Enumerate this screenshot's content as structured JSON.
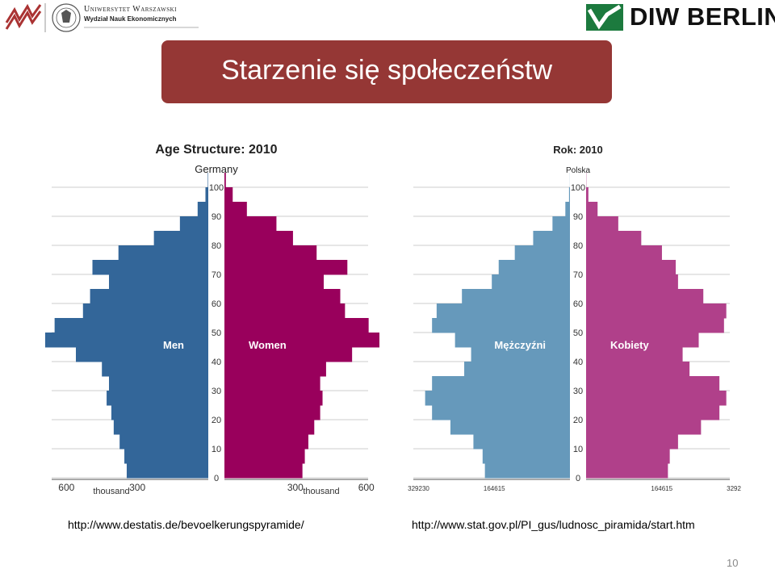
{
  "header": {
    "university_line1": "Uniwersytet Warszawski",
    "university_line2": "Wydział Nauk Ekonomicznych",
    "diw_logo_text": "DIW BERLIN"
  },
  "slide": {
    "title": "Starzenie się społeczeństw",
    "source_left": "http://www.destatis.de/bevoelkerungspyramide/",
    "source_right": "http://www.stat.gov.pl/PI_gus/ludnosc_piramida/start.htm",
    "page_number": "10"
  },
  "colors": {
    "title_bg": "#953735",
    "germany_men": "#336699",
    "germany_women": "#99005c",
    "poland_men": "#6699bb",
    "poland_women": "#b0408a"
  },
  "chart_data": [
    {
      "type": "population-pyramid",
      "title": "Age Structure: 2010",
      "subtitle": "Germany",
      "left_label": "Men",
      "right_label": "Women",
      "age_ticks": [
        "0",
        "10",
        "20",
        "30",
        "40",
        "50",
        "60",
        "70",
        "80",
        "90",
        "100"
      ],
      "x_ticks_left": [
        "600",
        "300"
      ],
      "x_ticks_right": [
        "300",
        "600"
      ],
      "x_unit": "thousand",
      "xlim": [
        0,
        700
      ],
      "age_step": 5,
      "ages": [
        0,
        5,
        10,
        15,
        20,
        25,
        30,
        35,
        40,
        45,
        50,
        55,
        60,
        65,
        70,
        75,
        80,
        85,
        90,
        95,
        100
      ],
      "series": [
        {
          "name": "Men",
          "values": [
            345,
            355,
            375,
            400,
            410,
            430,
            420,
            450,
            560,
            690,
            650,
            530,
            500,
            420,
            490,
            380,
            230,
            120,
            45,
            12,
            2
          ]
        },
        {
          "name": "Women",
          "values": [
            330,
            340,
            355,
            380,
            405,
            415,
            405,
            430,
            540,
            660,
            610,
            510,
            490,
            420,
            520,
            390,
            290,
            220,
            95,
            35,
            6
          ]
        }
      ]
    },
    {
      "type": "population-pyramid",
      "title": "Rok: 2010",
      "subtitle": "Polska",
      "left_label": "Mężczyźni",
      "right_label": "Kobiety",
      "age_ticks": [
        "0",
        "10",
        "20",
        "30",
        "40",
        "50",
        "60",
        "70",
        "80",
        "90",
        "100"
      ],
      "x_ticks_left": [
        "329230",
        "164615"
      ],
      "x_ticks_right": [
        "164615",
        "329230"
      ],
      "xlim": [
        0,
        360000
      ],
      "age_step": 5,
      "ages": [
        0,
        5,
        10,
        15,
        20,
        25,
        30,
        35,
        40,
        45,
        50,
        55,
        60,
        65,
        70,
        75,
        80,
        85,
        90,
        95,
        100
      ],
      "series": [
        {
          "name": "Mężczyźni",
          "values": [
            185000,
            190000,
            210000,
            260000,
            300000,
            315000,
            300000,
            230000,
            215000,
            250000,
            300000,
            290000,
            235000,
            170000,
            155000,
            120000,
            80000,
            38000,
            10000,
            2000,
            200
          ]
        },
        {
          "name": "Kobiety",
          "values": [
            178000,
            182000,
            200000,
            250000,
            290000,
            305000,
            290000,
            225000,
            210000,
            245000,
            300000,
            305000,
            255000,
            200000,
            195000,
            165000,
            120000,
            70000,
            25000,
            5000,
            500
          ]
        }
      ]
    }
  ]
}
